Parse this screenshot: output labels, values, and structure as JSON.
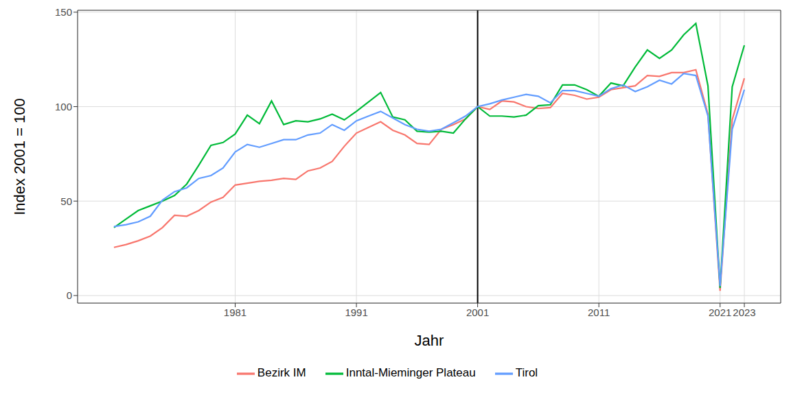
{
  "chart_data": {
    "type": "line",
    "x_label": "Jahr",
    "y_label": "Index 2001 = 100",
    "x": [
      1971,
      1972,
      1973,
      1974,
      1975,
      1976,
      1977,
      1978,
      1979,
      1980,
      1981,
      1982,
      1983,
      1984,
      1985,
      1986,
      1987,
      1988,
      1989,
      1990,
      1991,
      1992,
      1993,
      1994,
      1995,
      1996,
      1997,
      1998,
      1999,
      2000,
      2001,
      2002,
      2003,
      2004,
      2005,
      2006,
      2007,
      2008,
      2009,
      2010,
      2011,
      2012,
      2013,
      2014,
      2015,
      2016,
      2017,
      2018,
      2019,
      2020,
      2021,
      2022,
      2023
    ],
    "series": [
      {
        "name": "Bezirk IM",
        "color": "#F8766D",
        "values": [
          25.5,
          27,
          29,
          31.5,
          36,
          42.5,
          42,
          45,
          49.5,
          52,
          58.5,
          59.5,
          60.5,
          61,
          62,
          61.5,
          66,
          67.5,
          71,
          79,
          86,
          89,
          92,
          87.5,
          85,
          80.5,
          80,
          88,
          90.5,
          93.5,
          100,
          98.5,
          103,
          102.5,
          100,
          99,
          99.5,
          107,
          106,
          104,
          105,
          109,
          110,
          111,
          116.5,
          116,
          118,
          118,
          119.5,
          96,
          2.5,
          93,
          115
        ]
      },
      {
        "name": "Inntal-Mieminger Plateau",
        "color": "#00BA38",
        "values": [
          36,
          40.5,
          45,
          47.5,
          50,
          53,
          59,
          69,
          79.5,
          81,
          85.5,
          95.5,
          91,
          103,
          90.5,
          92.5,
          92,
          93.5,
          96,
          93,
          97.5,
          102.5,
          107.5,
          94.5,
          93,
          87,
          86.5,
          87,
          86,
          93.5,
          100,
          95,
          95,
          94.5,
          95.5,
          100.5,
          101,
          111.5,
          111.5,
          109,
          105.5,
          112.5,
          111,
          121,
          130,
          125.5,
          130,
          138,
          144,
          111,
          4,
          110.5,
          132.5
        ]
      },
      {
        "name": "Tirol",
        "color": "#619CFF",
        "values": [
          36.5,
          37.5,
          39,
          42,
          50.5,
          55,
          57,
          62,
          63.5,
          67.5,
          76,
          80,
          78.5,
          80.5,
          82.5,
          82.5,
          85,
          86,
          90.5,
          87.5,
          92.5,
          95,
          97.5,
          94,
          90.5,
          88,
          87,
          88,
          91.5,
          95,
          100,
          101.5,
          103.5,
          105,
          106.5,
          105.5,
          102,
          108.5,
          108.5,
          107,
          105.5,
          109.5,
          111.5,
          108,
          110.5,
          114,
          112,
          117.5,
          116.5,
          95,
          5,
          88,
          109
        ]
      }
    ],
    "xlim": [
      1968,
      2026
    ],
    "xticks": [
      1981,
      1991,
      2001,
      2011,
      2021,
      2023
    ],
    "ylim": [
      -4,
      151
    ],
    "yticks": [
      0,
      50,
      100,
      150
    ],
    "vline": 2001,
    "grid": true,
    "legend": "bottom"
  }
}
